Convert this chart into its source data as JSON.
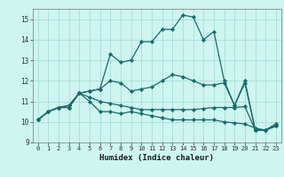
{
  "xlabel": "Humidex (Indice chaleur)",
  "background_color": "#cef5f0",
  "grid_color": "#aaddda",
  "line_color": "#1a6b6b",
  "xlim": [
    -0.5,
    23.5
  ],
  "ylim": [
    9,
    15.5
  ],
  "yticks": [
    9,
    10,
    11,
    12,
    13,
    14,
    15
  ],
  "xticks": [
    0,
    1,
    2,
    3,
    4,
    5,
    6,
    7,
    8,
    9,
    10,
    11,
    12,
    13,
    14,
    15,
    16,
    17,
    18,
    19,
    20,
    21,
    22,
    23
  ],
  "series": [
    [
      10.1,
      10.5,
      10.7,
      10.7,
      11.4,
      11.5,
      11.6,
      12.0,
      11.9,
      11.5,
      11.6,
      11.7,
      12.0,
      12.3,
      12.2,
      12.0,
      11.8,
      11.8,
      11.9,
      10.8,
      12.0,
      9.6,
      9.6,
      9.9
    ],
    [
      10.1,
      10.5,
      10.7,
      10.7,
      11.4,
      11.0,
      10.5,
      10.5,
      10.4,
      10.5,
      10.4,
      10.3,
      10.2,
      10.1,
      10.1,
      10.1,
      10.1,
      10.1,
      10.0,
      9.95,
      9.9,
      9.7,
      9.6,
      9.8
    ],
    [
      10.1,
      10.5,
      10.7,
      10.8,
      11.4,
      11.2,
      11.0,
      10.9,
      10.8,
      10.7,
      10.6,
      10.6,
      10.6,
      10.6,
      10.6,
      10.6,
      10.65,
      10.7,
      10.7,
      10.7,
      10.75,
      9.6,
      9.6,
      9.8
    ],
    [
      10.1,
      10.5,
      10.7,
      10.8,
      11.4,
      11.5,
      11.6,
      13.3,
      12.9,
      13.0,
      13.9,
      13.9,
      14.5,
      14.5,
      15.2,
      15.1,
      14.0,
      14.4,
      12.0,
      10.8,
      11.9,
      9.6,
      9.6,
      9.9
    ]
  ],
  "marker": "D",
  "marker_size": 2.2,
  "line_width": 0.9
}
